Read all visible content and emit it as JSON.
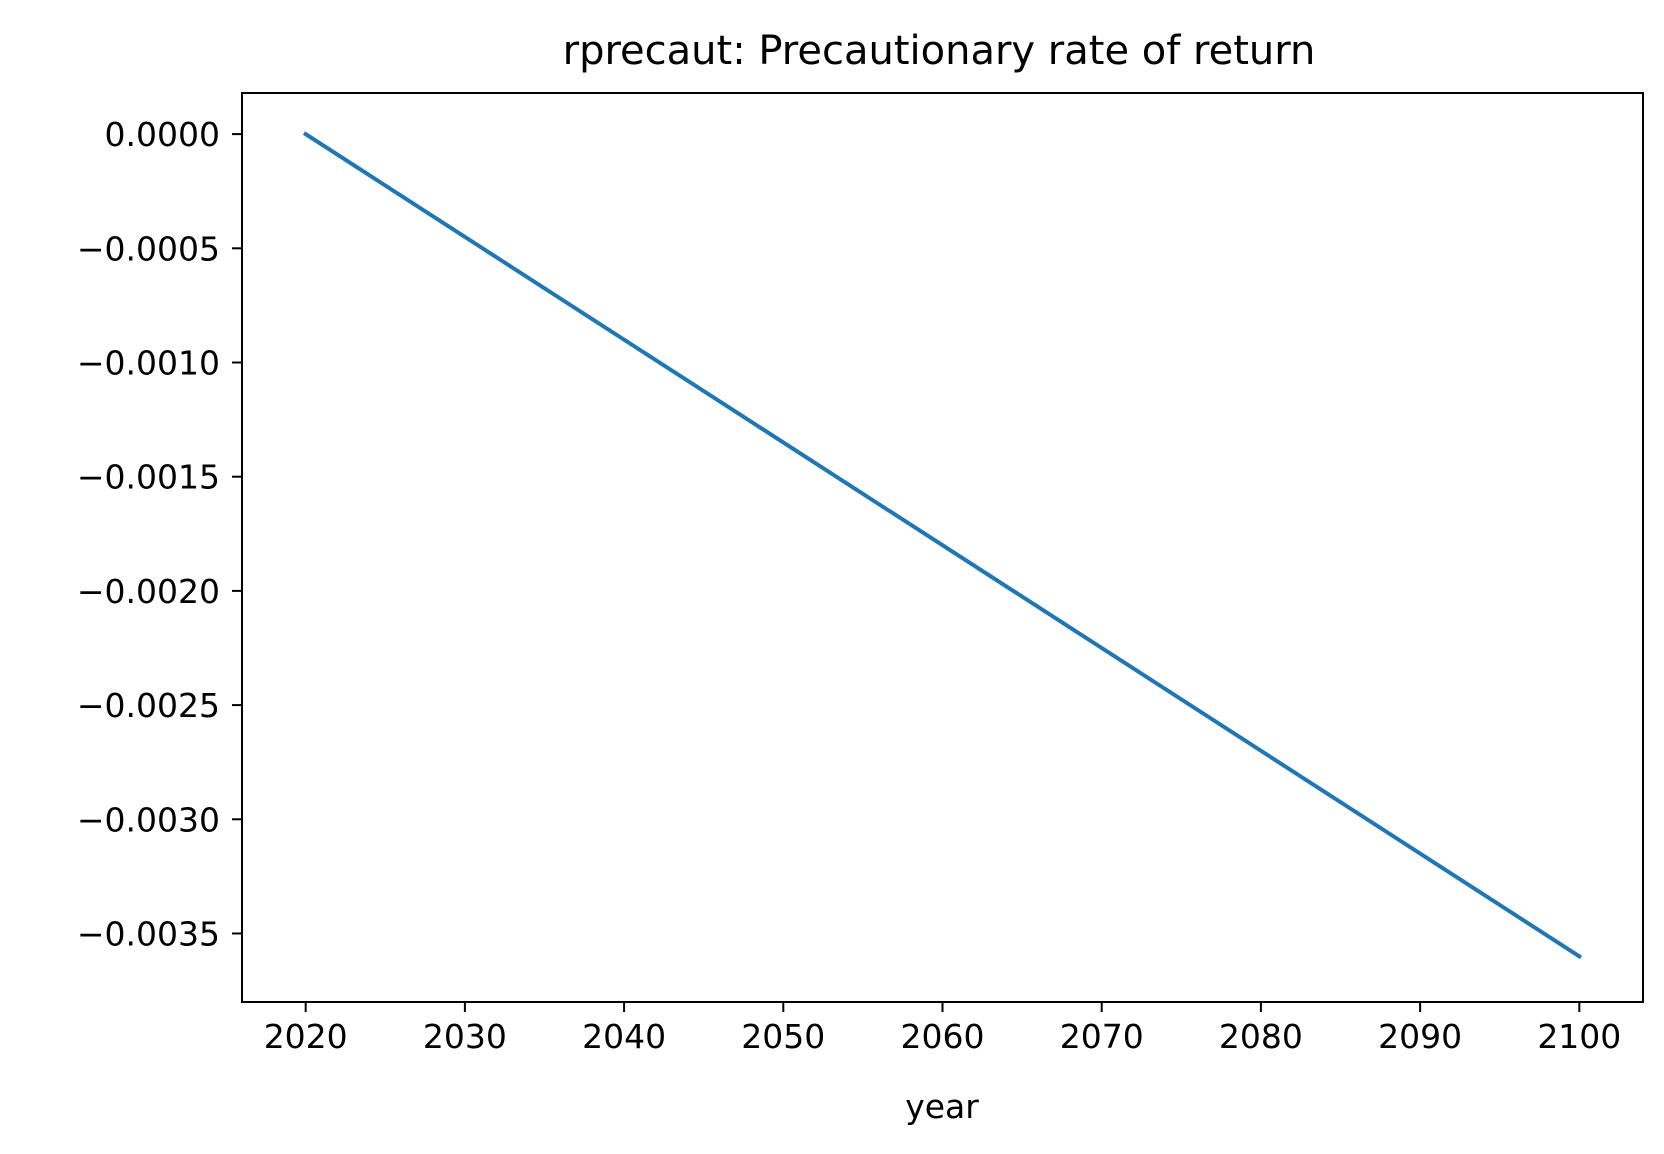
{
  "chart_data": {
    "type": "line",
    "title": "rprecaut: Precautionary rate of return",
    "xlabel": "year",
    "ylabel": "",
    "xlim": [
      2016,
      2104
    ],
    "ylim": [
      -0.0038,
      0.00018
    ],
    "xticks": [
      2020,
      2030,
      2040,
      2050,
      2060,
      2070,
      2080,
      2090,
      2100
    ],
    "xtick_labels": [
      "2020",
      "2030",
      "2040",
      "2050",
      "2060",
      "2070",
      "2080",
      "2090",
      "2100"
    ],
    "yticks": [
      0.0,
      -0.0005,
      -0.001,
      -0.0015,
      -0.002,
      -0.0025,
      -0.003,
      -0.0035
    ],
    "ytick_labels": [
      "0.0000",
      "−0.0005",
      "−0.0010",
      "−0.0015",
      "−0.0020",
      "−0.0025",
      "−0.0030",
      "−0.0035"
    ],
    "grid": false,
    "legend": "none",
    "series": [
      {
        "color": "#1f77b4",
        "x": [
          2020,
          2100
        ],
        "y": [
          0.0,
          -0.0036
        ]
      }
    ]
  }
}
